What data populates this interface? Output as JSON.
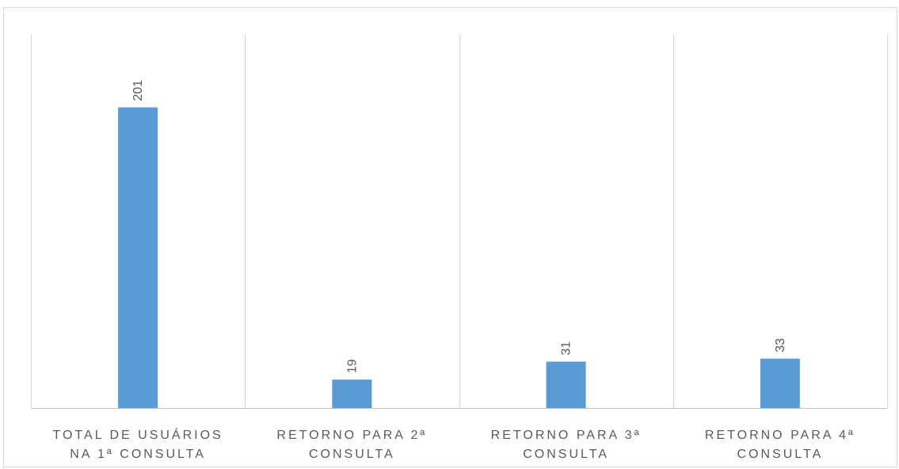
{
  "chart_data": {
    "type": "bar",
    "title": "",
    "xlabel": "",
    "ylabel": "",
    "categories": [
      [
        "TOTAL DE USUÁRIOS",
        "NA 1ª CONSULTA"
      ],
      [
        "RETORNO PARA 2ª",
        "CONSULTA"
      ],
      [
        "RETORNO PARA 3ª",
        "CONSULTA"
      ],
      [
        "RETORNO PARA 4ª",
        "CONSULTA"
      ]
    ],
    "values": [
      201,
      19,
      31,
      33
    ],
    "data_labels": [
      "201",
      "19",
      "31",
      "33"
    ],
    "ylim": [
      0,
      250
    ],
    "grid": "vertical category separators",
    "legend": "none",
    "colors": {
      "bar": "#5b9bd5",
      "grid": "#d9d9d9",
      "axis": "#bfbfbf",
      "text": "#595959"
    }
  }
}
